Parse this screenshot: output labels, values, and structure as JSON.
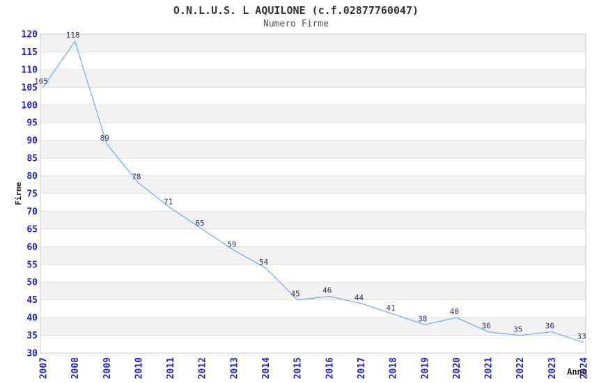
{
  "chart_data": {
    "type": "line",
    "title": "O.N.L.U.S. L AQUILONE (c.f.02877760047)",
    "subtitle": "Numero Firme",
    "xlabel": "Anno",
    "ylabel": "Firme",
    "categories": [
      "2007",
      "2008",
      "2009",
      "2010",
      "2011",
      "2012",
      "2013",
      "2014",
      "2015",
      "2016",
      "2017",
      "2018",
      "2019",
      "2020",
      "2021",
      "2022",
      "2023",
      "2024"
    ],
    "values": [
      105,
      118,
      89,
      78,
      71,
      65,
      59,
      54,
      45,
      46,
      44,
      41,
      38,
      40,
      36,
      35,
      36,
      33
    ],
    "ylim": [
      30,
      120
    ],
    "ytick_step": 5,
    "grid": true,
    "legend": false,
    "point_labels": true,
    "colors": {
      "line": "#7cb0e8",
      "point_label": "#333366",
      "tick_label": "#2222cc",
      "band": "#f2f2f2",
      "band_alt": "#ffffff",
      "grid": "#e0e0e0",
      "border": "#c8c8c8",
      "title": "#333333",
      "subtitle": "#555555",
      "axis_label": "#222222"
    }
  }
}
